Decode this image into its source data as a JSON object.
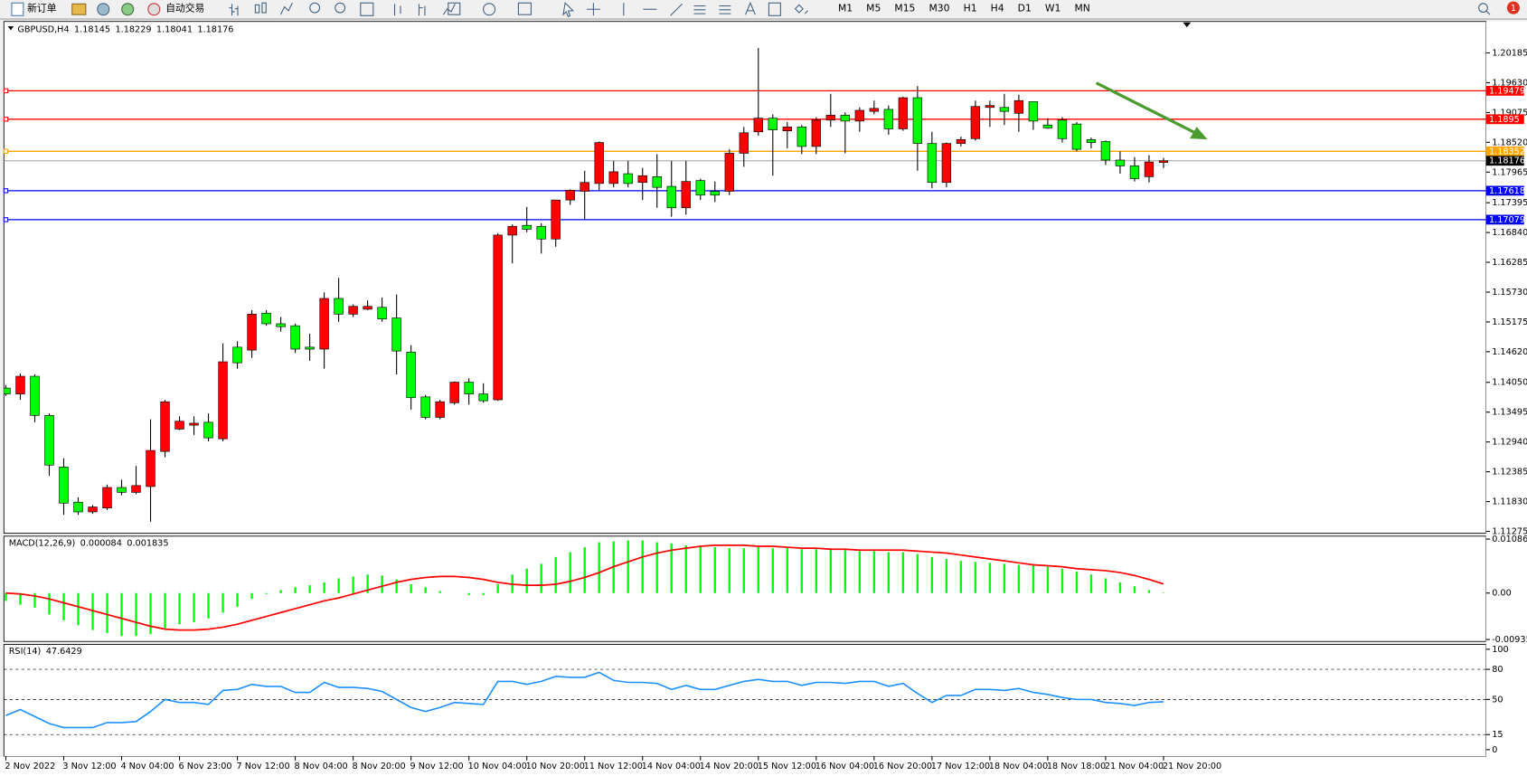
{
  "toolbar": {
    "new_order": "新订单",
    "auto_trading": "自动交易",
    "timeframes": [
      "M1",
      "M5",
      "M15",
      "M30",
      "H1",
      "H4",
      "D1",
      "W1",
      "MN"
    ],
    "notifications": 1
  },
  "chart_data": [
    {
      "type": "candlestick",
      "title": "GBPUSD,H4",
      "up_color": "#ff0000",
      "down_color": "#00ff00",
      "wick_color": "#000000",
      "last_line_color": "#a0a0a0",
      "open": [
        1.13943,
        1.13834,
        1.14163,
        1.13434,
        1.12473,
        1.11819,
        1.11638,
        1.1171,
        1.12092,
        1.12001,
        1.1211,
        1.12763,
        1.1318,
        1.13253,
        1.13307,
        1.12999,
        1.14705,
        1.1465,
        1.15338,
        1.15141,
        1.15104,
        1.14705,
        1.14669,
        1.15612,
        1.1532,
        1.15412,
        1.15447,
        1.15249,
        1.14614,
        1.13779,
        1.13398,
        1.1367,
        1.14053,
        1.13834,
        1.13725,
        1.16792,
        1.16973,
        1.16955,
        1.16719,
        1.17445,
        1.17608,
        1.17753,
        1.17753,
        1.17935,
        1.17772,
        1.1788,
        1.17699,
        1.173,
        1.17808,
        1.17608,
        1.17608,
        1.18316,
        1.18715,
        1.18969,
        1.18733,
        1.18806,
        1.18443,
        1.18933,
        1.19024,
        1.18915,
        1.19096,
        1.19133,
        1.1877,
        1.1935,
        1.18498,
        1.17772,
        1.18498,
        1.18588,
        1.19169,
        1.19169,
        1.1906,
        1.19278,
        1.18842,
        1.18933,
        1.1886,
        1.1857,
        1.18534,
        1.18189,
        1.1808,
        1.1788,
        1.18145
      ],
      "high": [
        1.13997,
        1.14215,
        1.14197,
        1.13471,
        1.12636,
        1.1191,
        1.11765,
        1.12146,
        1.12237,
        1.12493,
        1.13362,
        1.13725,
        1.13416,
        1.13416,
        1.13471,
        1.14777,
        1.14814,
        1.15394,
        1.15394,
        1.15267,
        1.15141,
        1.14958,
        1.15725,
        1.15994,
        1.15502,
        1.15576,
        1.15631,
        1.15685,
        1.14742,
        1.13816,
        1.13725,
        1.14069,
        1.14125,
        1.14033,
        1.16828,
        1.16991,
        1.17318,
        1.1701,
        1.17445,
        1.17645,
        1.17989,
        1.18534,
        1.18171,
        1.18171,
        1.18043,
        1.18298,
        1.18171,
        1.18171,
        1.17844,
        1.1779,
        1.18389,
        1.18806,
        1.20276,
        1.19042,
        1.18897,
        1.18842,
        1.18988,
        1.19423,
        1.19078,
        1.19169,
        1.19296,
        1.19205,
        1.19369,
        1.19568,
        1.18715,
        1.18516,
        1.18625,
        1.19296,
        1.19296,
        1.19423,
        1.19405,
        1.19278,
        1.18969,
        1.18988,
        1.18897,
        1.18606,
        1.18552,
        1.18352,
        1.18243,
        1.1828,
        1.18229
      ],
      "low": [
        1.13797,
        1.13725,
        1.13307,
        1.12309,
        1.11583,
        1.11583,
        1.11602,
        1.11674,
        1.11946,
        1.11965,
        1.11456,
        1.12654,
        1.13162,
        1.13071,
        1.12952,
        1.12952,
        1.14306,
        1.14505,
        1.15104,
        1.14995,
        1.14596,
        1.14452,
        1.14306,
        1.15177,
        1.15267,
        1.15394,
        1.15177,
        1.14197,
        1.13543,
        1.13362,
        1.13362,
        1.13634,
        1.13634,
        1.1367,
        1.13707,
        1.16265,
        1.16846,
        1.16447,
        1.16574,
        1.17354,
        1.17082,
        1.17627,
        1.17681,
        1.17681,
        1.17445,
        1.173,
        1.17136,
        1.17173,
        1.17445,
        1.17408,
        1.17536,
        1.18062,
        1.18643,
        1.17898,
        1.18407,
        1.18298,
        1.18298,
        1.18806,
        1.18316,
        1.18715,
        1.19042,
        1.18661,
        1.18733,
        1.17989,
        1.17663,
        1.17681,
        1.18443,
        1.18552,
        1.18806,
        1.18842,
        1.18715,
        1.18752,
        1.1877,
        1.18516,
        1.18352,
        1.18407,
        1.18098,
        1.17935,
        1.1779,
        1.17772,
        1.18041
      ],
      "close": [
        1.13834,
        1.14163,
        1.13434,
        1.12509,
        1.11801,
        1.11638,
        1.11729,
        1.12092,
        1.12001,
        1.12128,
        1.12781,
        1.13689,
        1.13326,
        1.13289,
        1.13016,
        1.14433,
        1.14414,
        1.1532,
        1.15141,
        1.15086,
        1.14669,
        1.14669,
        1.15612,
        1.1532,
        1.15465,
        1.15465,
        1.15231,
        1.14633,
        1.13764,
        1.13398,
        1.13689,
        1.14053,
        1.13834,
        1.13707,
        1.16792,
        1.16955,
        1.16901,
        1.16719,
        1.17445,
        1.17627,
        1.17772,
        1.18516,
        1.17971,
        1.17753,
        1.17898,
        1.17681,
        1.173,
        1.1779,
        1.17536,
        1.17536,
        1.18316,
        1.18697,
        1.18969,
        1.18752,
        1.18806,
        1.18443,
        1.18933,
        1.19024,
        1.18915,
        1.19115,
        1.19151,
        1.1877,
        1.1935,
        1.18498,
        1.17772,
        1.18498,
        1.1857,
        1.19187,
        1.19205,
        1.19096,
        1.19296,
        1.18915,
        1.18788,
        1.18588,
        1.18389,
        1.18516,
        1.18189,
        1.1808,
        1.17844,
        1.18153,
        1.18176
      ],
      "levels": [
        {
          "value": 1.19479,
          "color": "#ff0000"
        },
        {
          "value": 1.1895,
          "color": "#ff0000"
        },
        {
          "value": 1.18352,
          "color": "#ffa500"
        },
        {
          "value": 1.17618,
          "color": "#0000ff"
        },
        {
          "value": 1.17079,
          "color": "#0000ff"
        }
      ],
      "ylim": [
        1.1124,
        1.2077
      ],
      "yticks": [
        {
          "value": 1.20185,
          "label": "1.20185"
        },
        {
          "value": 1.1963,
          "label": "1.19630"
        },
        {
          "value": 1.19075,
          "label": "1.19075"
        },
        {
          "value": 1.1852,
          "label": "1.18520"
        },
        {
          "value": 1.17965,
          "label": "1.17965"
        },
        {
          "value": 1.17395,
          "label": "1.17395"
        },
        {
          "value": 1.1684,
          "label": "1.16840"
        },
        {
          "value": 1.16285,
          "label": "1.16285"
        },
        {
          "value": 1.1573,
          "label": "1.15730"
        },
        {
          "value": 1.15175,
          "label": "1.15175"
        },
        {
          "value": 1.1462,
          "label": "1.14620"
        },
        {
          "value": 1.1405,
          "label": "1.14050"
        },
        {
          "value": 1.13495,
          "label": "1.13495"
        },
        {
          "value": 1.1294,
          "label": "1.12940"
        },
        {
          "value": 1.12385,
          "label": "1.12385"
        },
        {
          "value": 1.1183,
          "label": "1.11830"
        },
        {
          "value": 1.11275,
          "label": "1.11275"
        }
      ]
    },
    {
      "type": "macd",
      "title": "MACD(12,26,9)",
      "histogram_color": "#00ff00",
      "signal_color": "#ff0000",
      "histogram": [
        -0.00157,
        -0.002356,
        -0.002945,
        -0.004319,
        -0.005496,
        -0.006478,
        -0.007459,
        -0.008048,
        -0.008637,
        -0.008637,
        -0.008245,
        -0.007067,
        -0.006282,
        -0.005889,
        -0.005104,
        -0.003926,
        -0.002748,
        -0.001178,
        -0.000196,
        0.000589,
        0.001178,
        0.00157,
        0.002159,
        0.002945,
        0.003337,
        0.00373,
        0.003533,
        0.002748,
        0.001767,
        0.001178,
        0.000393,
        0,
        -0.000393,
        -0.000393,
        0.001767,
        0.00373,
        0.004908,
        0.005889,
        0.007263,
        0.008245,
        0.009226,
        0.010208,
        0.010404,
        0.0106,
        0.0106,
        0.010208,
        0.010011,
        0.009619,
        0.009422,
        0.009226,
        0.00903,
        0.00903,
        0.009226,
        0.00903,
        0.00903,
        0.008834,
        0.008834,
        0.008834,
        0.008637,
        0.008441,
        0.008441,
        0.008245,
        0.008245,
        0.007852,
        0.007263,
        0.00687,
        0.006478,
        0.006282,
        0.006085,
        0.005889,
        0.005693,
        0.005693,
        0.0053,
        0.004908,
        0.004319,
        0.00373,
        0.002945,
        0.002159,
        0.001374,
        0.000589,
        8.4e-05
      ],
      "signal": [
        0,
        -0.000196,
        -0.000589,
        -0.001178,
        -0.001963,
        -0.002748,
        -0.003533,
        -0.004319,
        -0.005104,
        -0.005889,
        -0.006674,
        -0.007263,
        -0.007459,
        -0.007459,
        -0.007263,
        -0.00687,
        -0.006282,
        -0.005496,
        -0.004711,
        -0.003926,
        -0.003141,
        -0.002356,
        -0.00157,
        -0.000982,
        -0.000196,
        0.000589,
        0.001374,
        0.002159,
        0.002748,
        0.003141,
        0.003337,
        0.003337,
        0.003141,
        0.002748,
        0.002159,
        0.001767,
        0.00157,
        0.00157,
        0.001767,
        0.002356,
        0.003141,
        0.004122,
        0.0053,
        0.006282,
        0.007263,
        0.008048,
        0.008637,
        0.00903,
        0.009422,
        0.009619,
        0.009619,
        0.009619,
        0.009422,
        0.009422,
        0.009226,
        0.00903,
        0.00903,
        0.008834,
        0.008834,
        0.008637,
        0.008637,
        0.008637,
        0.008637,
        0.008441,
        0.008245,
        0.008048,
        0.007656,
        0.007263,
        0.00687,
        0.006478,
        0.006085,
        0.005693,
        0.005496,
        0.0053,
        0.004908,
        0.004711,
        0.004514,
        0.004122,
        0.003533,
        0.002748,
        0.001835
      ],
      "ylim": [
        -0.009358,
        0.010864
      ],
      "yticks": [
        0.010864,
        {
          "value": 0,
          "label": "0.00"
        },
        -0.009358
      ]
    },
    {
      "type": "line",
      "title": "RSI(14)",
      "color": "#1e90ff",
      "values": [
        34,
        40,
        33,
        26,
        22,
        22,
        22,
        27,
        27,
        28,
        38,
        50,
        47,
        47,
        45,
        59,
        60,
        65,
        63,
        63,
        57,
        57,
        67,
        62,
        62,
        61,
        58,
        50,
        42,
        38,
        42,
        47,
        46,
        45,
        68,
        68,
        65,
        68,
        73,
        72,
        72,
        77,
        69,
        67,
        67,
        66,
        60,
        64,
        60,
        60,
        64,
        68,
        70,
        68,
        68,
        64,
        67,
        67,
        66,
        68,
        68,
        63,
        66,
        56,
        47,
        54,
        54,
        60,
        60,
        59,
        61,
        57,
        55,
        52,
        50,
        50,
        47,
        46,
        44,
        47,
        47.6429
      ],
      "ylim": [
        0,
        100
      ],
      "yticks": [
        100,
        80,
        50,
        15,
        0
      ],
      "categories": [
        "2 Nov 2022",
        null,
        null,
        null,
        "3 Nov 12:00",
        null,
        null,
        null,
        "4 Nov 04:00",
        null,
        null,
        null,
        "6 Nov 23:00",
        null,
        null,
        null,
        "7 Nov 12:00",
        null,
        null,
        null,
        "8 Nov 04:00",
        null,
        null,
        null,
        "8 Nov 20:00",
        null,
        null,
        null,
        "9 Nov 12:00",
        null,
        null,
        null,
        "10 Nov 04:00",
        null,
        null,
        null,
        "10 Nov 20:00",
        null,
        null,
        null,
        "11 Nov 12:00",
        null,
        null,
        null,
        "14 Nov 04:00",
        null,
        null,
        null,
        "14 Nov 20:00",
        null,
        null,
        null,
        "15 Nov 12:00",
        null,
        null,
        null,
        "16 Nov 04:00",
        null,
        null,
        null,
        "16 Nov 20:00",
        null,
        null,
        null,
        "17 Nov 12:00",
        null,
        null,
        null,
        "18 Nov 04:00",
        null,
        null,
        null,
        "18 Nov 18:00",
        null,
        null,
        null,
        "21 Nov 04:00",
        null,
        null,
        null,
        "21 Nov 20:00"
      ]
    }
  ]
}
